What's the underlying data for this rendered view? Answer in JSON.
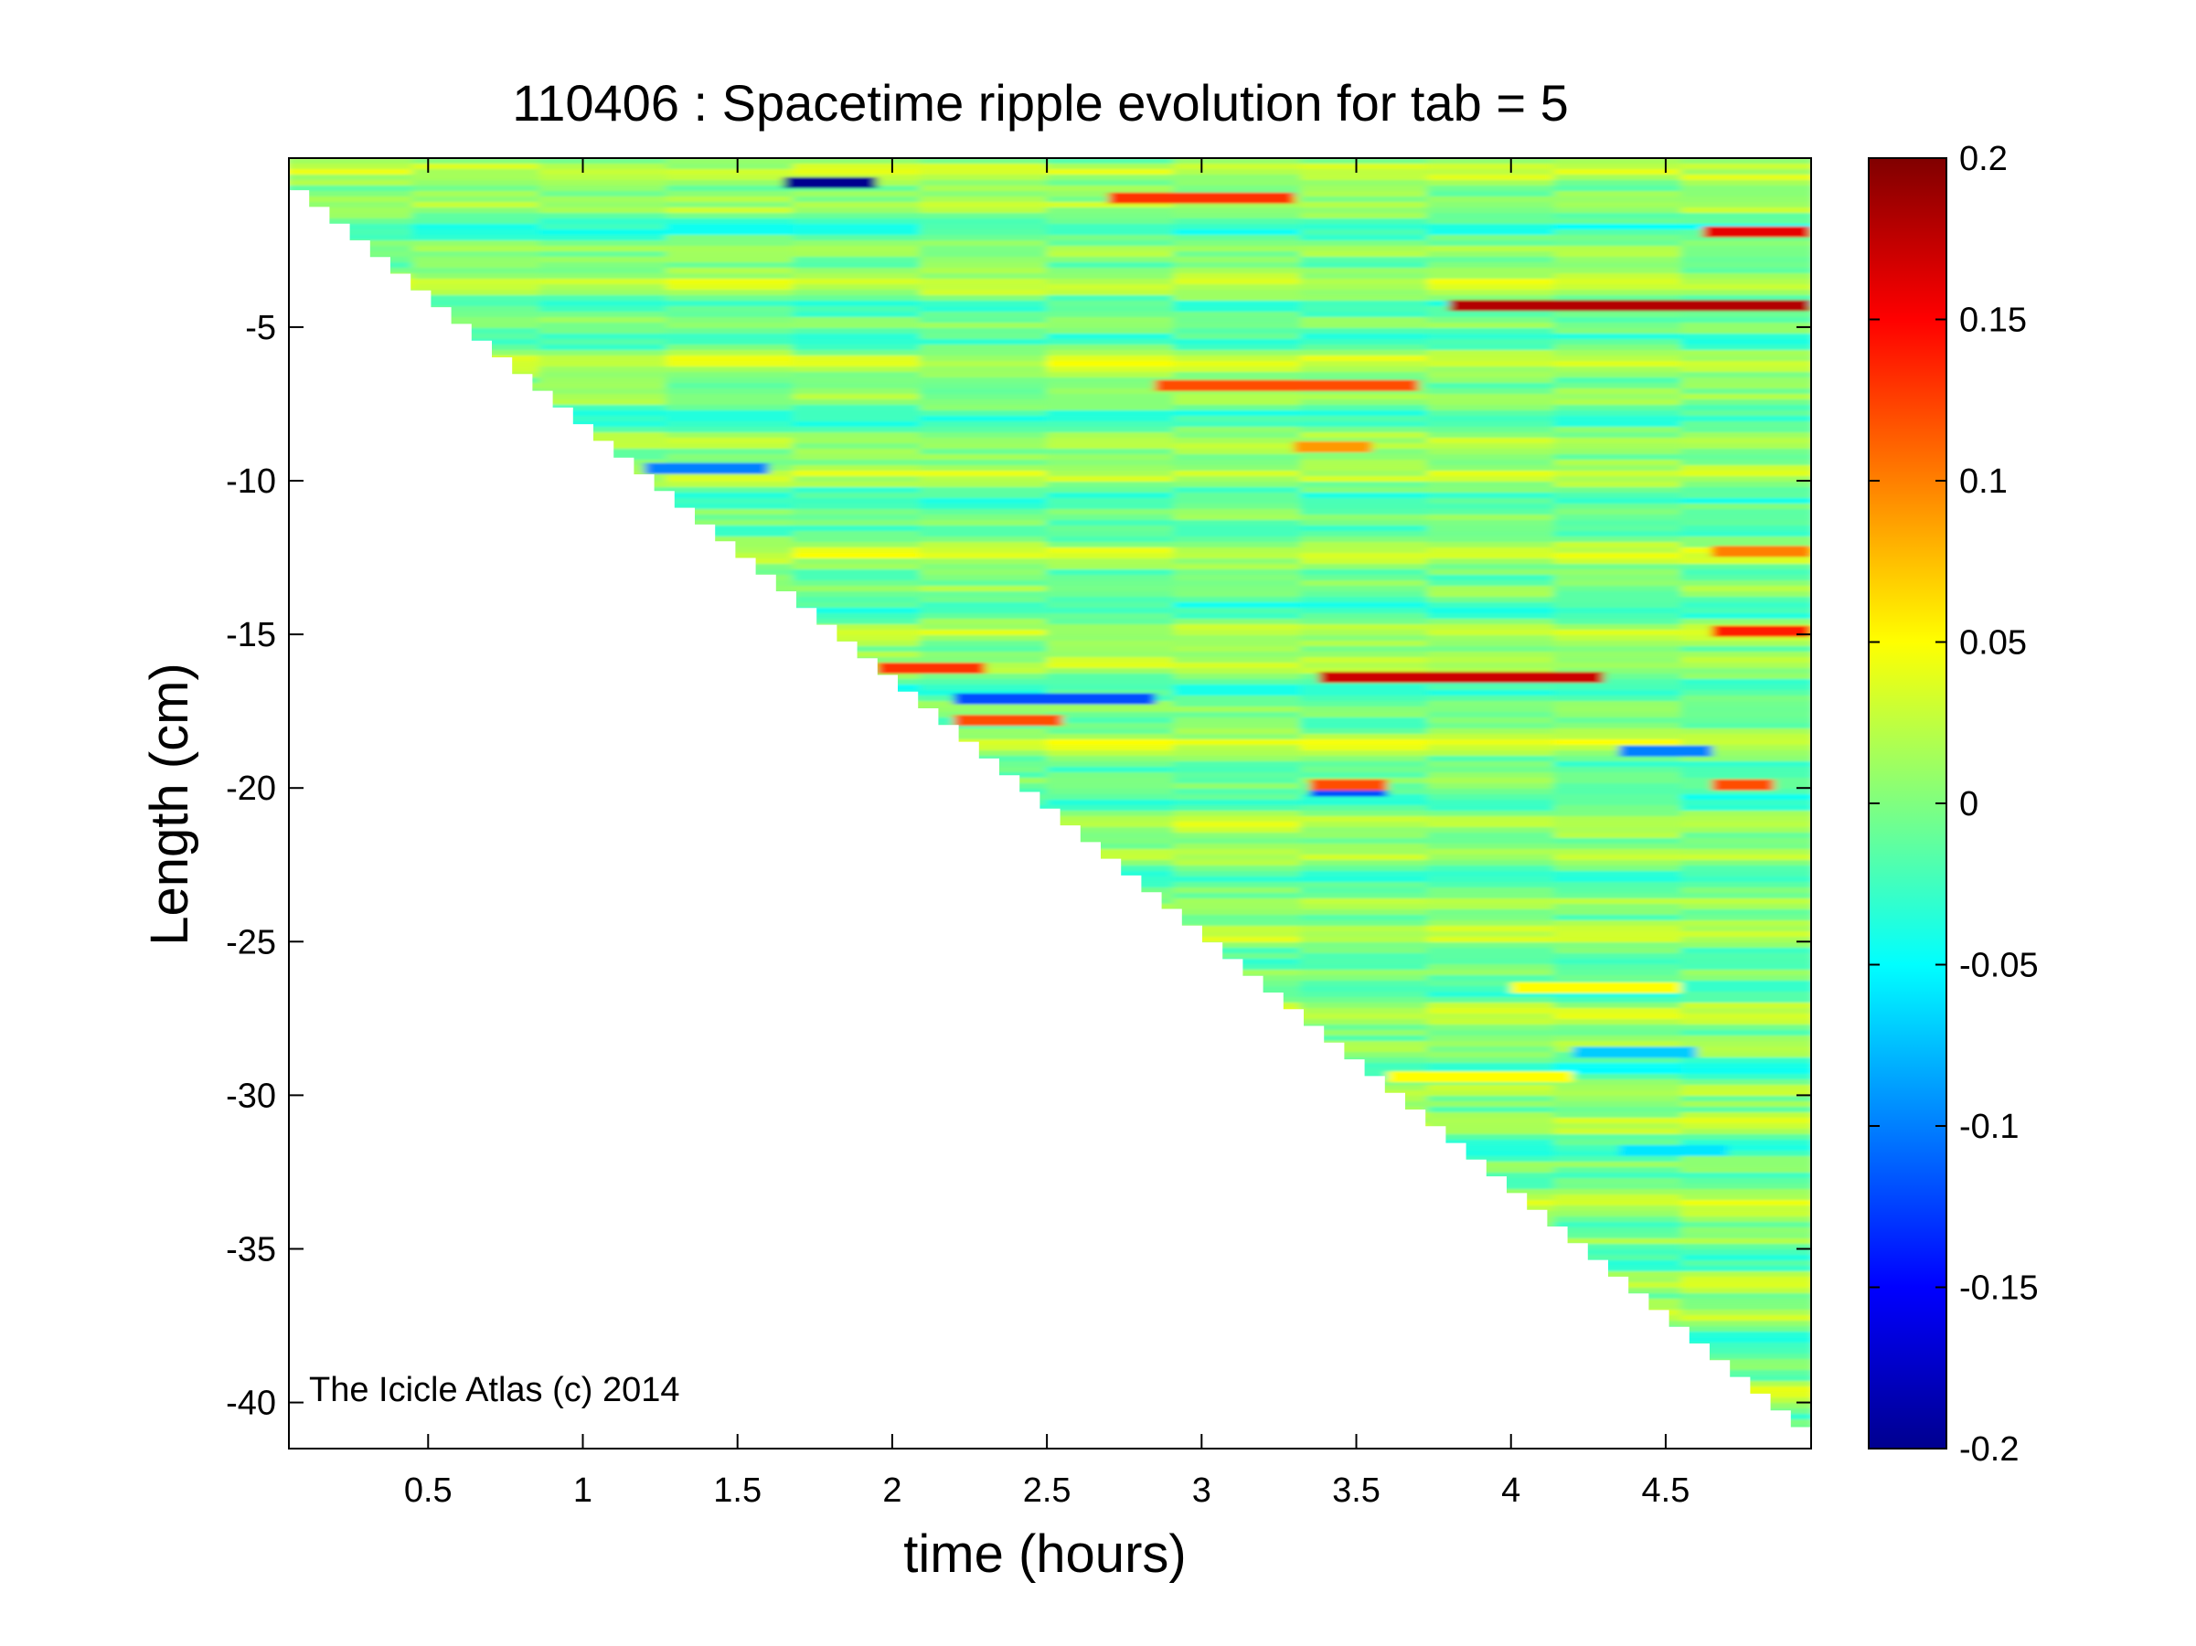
{
  "chart_data": {
    "type": "heatmap",
    "title": "110406 : Spacetime ripple evolution for tab = 5",
    "xlabel": "time (hours)",
    "ylabel": "Length (cm)",
    "xlim": [
      0.05,
      4.97
    ],
    "ylim": [
      -41.5,
      0.5
    ],
    "x_ticks": [
      0.5,
      1,
      1.5,
      2,
      2.5,
      3,
      3.5,
      4,
      4.5
    ],
    "x_tick_labels": [
      "0.5",
      "1",
      "1.5",
      "2",
      "2.5",
      "3",
      "3.5",
      "4",
      "4.5"
    ],
    "y_ticks": [
      -5,
      -10,
      -15,
      -20,
      -25,
      -30,
      -35,
      -40
    ],
    "y_tick_labels": [
      "-5",
      "-10",
      "-15",
      "-20",
      "-25",
      "-30",
      "-35",
      "-40"
    ],
    "colormap": "jet",
    "clim": [
      -0.2,
      0.2
    ],
    "colorbar_ticks": [
      0.2,
      0.15,
      0.1,
      0.05,
      0,
      -0.05,
      -0.1,
      -0.15,
      -0.2
    ],
    "colorbar_tick_labels": [
      "0.2",
      "0.15",
      "0.1",
      "0.05",
      "0",
      "-0.05",
      "-0.1",
      "-0.15",
      "-0.2"
    ],
    "data_extent": {
      "start": [
        0.05,
        0.0
      ],
      "end": [
        4.97,
        -40.8
      ]
    },
    "features": [
      {
        "t0": 1.65,
        "t1": 1.95,
        "length": -0.3,
        "value": -0.2
      },
      {
        "t0": 2.7,
        "t1": 3.3,
        "length": -0.8,
        "value": 0.13
      },
      {
        "t0": 4.62,
        "t1": 4.97,
        "length": -1.9,
        "value": 0.16
      },
      {
        "t0": 3.8,
        "t1": 4.97,
        "length": -4.3,
        "value": 0.18
      },
      {
        "t0": 2.85,
        "t1": 3.7,
        "length": -6.9,
        "value": 0.12
      },
      {
        "t0": 3.3,
        "t1": 3.55,
        "length": -8.9,
        "value": 0.09
      },
      {
        "t0": 1.2,
        "t1": 1.6,
        "length": -9.6,
        "value": -0.1
      },
      {
        "t0": 4.65,
        "t1": 4.97,
        "length": -12.3,
        "value": 0.1
      },
      {
        "t0": 4.65,
        "t1": 4.97,
        "length": -14.9,
        "value": 0.14
      },
      {
        "t0": 3.38,
        "t1": 4.3,
        "length": -16.4,
        "value": 0.17
      },
      {
        "t0": 1.95,
        "t1": 2.3,
        "length": -16.1,
        "value": 0.13
      },
      {
        "t0": 2.2,
        "t1": 2.85,
        "length": -17.1,
        "value": -0.12
      },
      {
        "t0": 2.2,
        "t1": 2.55,
        "length": -17.8,
        "value": 0.12
      },
      {
        "t0": 3.35,
        "t1": 3.6,
        "length": -20.1,
        "value": -0.12
      },
      {
        "t0": 3.35,
        "t1": 3.6,
        "length": -19.9,
        "value": 0.12
      },
      {
        "t0": 4.35,
        "t1": 4.65,
        "length": -18.8,
        "value": -0.1
      },
      {
        "t0": 4.65,
        "t1": 4.85,
        "length": -19.9,
        "value": 0.12
      },
      {
        "t0": 4.0,
        "t1": 4.55,
        "length": -26.5,
        "value": 0.05
      },
      {
        "t0": 4.2,
        "t1": 4.6,
        "length": -28.6,
        "value": -0.07
      },
      {
        "t0": 4.35,
        "t1": 4.7,
        "length": -31.8,
        "value": -0.06
      },
      {
        "t0": 3.6,
        "t1": 4.2,
        "length": -29.4,
        "value": 0.05
      }
    ]
  },
  "watermark": "The Icicle Atlas (c) 2014"
}
